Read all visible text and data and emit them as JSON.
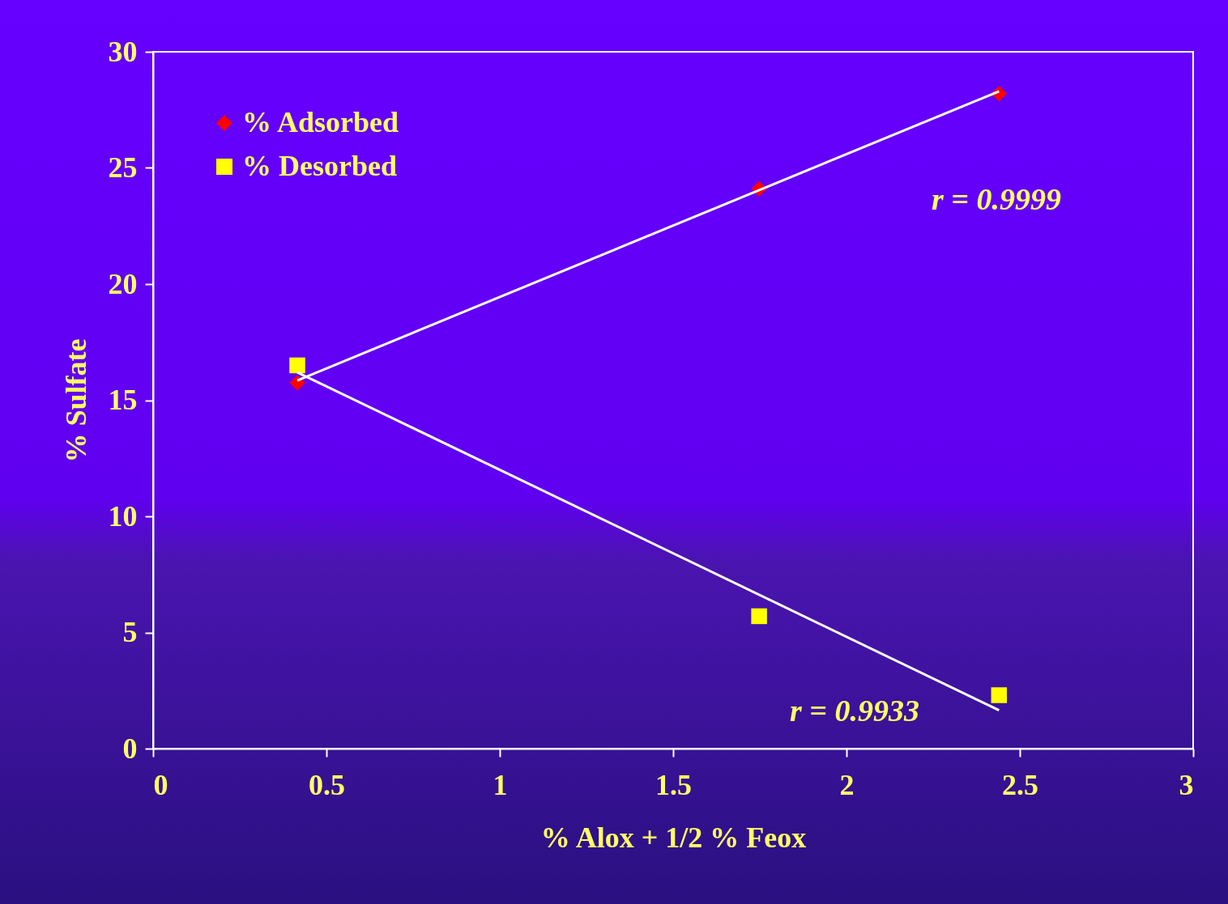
{
  "chart_data": {
    "type": "scatter",
    "xlabel": "% Alox + 1/2 % Feox",
    "ylabel": "% Sulfate",
    "xlim": [
      0,
      3
    ],
    "ylim": [
      0,
      30
    ],
    "xticks": [
      0,
      0.5,
      1,
      1.5,
      2,
      2.5,
      3
    ],
    "yticks": [
      0,
      5,
      10,
      15,
      20,
      25,
      30
    ],
    "grid": false,
    "legend": "top left",
    "series": [
      {
        "name": "% Adsorbed",
        "marker": "diamond",
        "color": "#ff0000",
        "x": [
          0.416,
          1.748,
          2.44
        ],
        "values": [
          15.75,
          24.1,
          28.2
        ]
      },
      {
        "name": "% Desorbed",
        "marker": "square",
        "color": "#ffff00",
        "x": [
          0.416,
          1.748,
          2.44
        ],
        "values": [
          16.5,
          5.7,
          2.3
        ]
      },
      {
        "type": "line",
        "color": "#ffffff",
        "x": [
          0.416,
          2.44
        ],
        "values": [
          15.85,
          28.3
        ]
      },
      {
        "type": "line",
        "color": "#ffffff",
        "x": [
          0.416,
          2.44
        ],
        "values": [
          16.2,
          1.65
        ]
      }
    ],
    "annotations": [
      "r = 0.9999",
      "r = 0.9933"
    ]
  }
}
